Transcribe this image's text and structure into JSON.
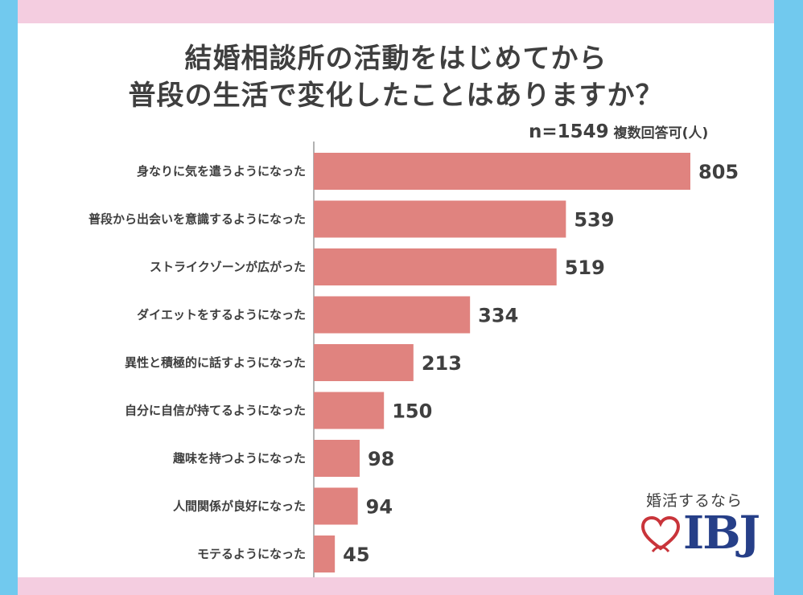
{
  "title_lines": [
    "結婚相談所の活動をはじめてから",
    "普段の生活で変化したことはありますか？"
  ],
  "sample": "n=1549",
  "note": "複数回答可(人)",
  "colors": {
    "bar": "#e0837f",
    "side_border": "#71c9ee",
    "band": "#f4cde0",
    "logo_blue": "#263f88",
    "logo_red": "#c9343a"
  },
  "logo": {
    "tagline": "婚活するなら",
    "brand": "IBJ",
    "icon": "heart-outline-icon"
  },
  "chart_data": {
    "type": "bar",
    "orientation": "horizontal",
    "title": "結婚相談所の活動をはじめてから普段の生活で変化したことはありますか？",
    "categories": [
      "身なりに気を遣うようになった",
      "普段から出会いを意識するようになった",
      "ストライクゾーンが広がった",
      "ダイエットをするようになった",
      "異性と積極的に話すようになった",
      "自分に自信が持てるようになった",
      "趣味を持つようになった",
      "人間関係が良好になった",
      "モテるようになった"
    ],
    "values": [
      805,
      539,
      519,
      334,
      213,
      150,
      98,
      94,
      45
    ],
    "xlim": [
      0,
      805
    ],
    "grid": false,
    "legend": "none"
  }
}
